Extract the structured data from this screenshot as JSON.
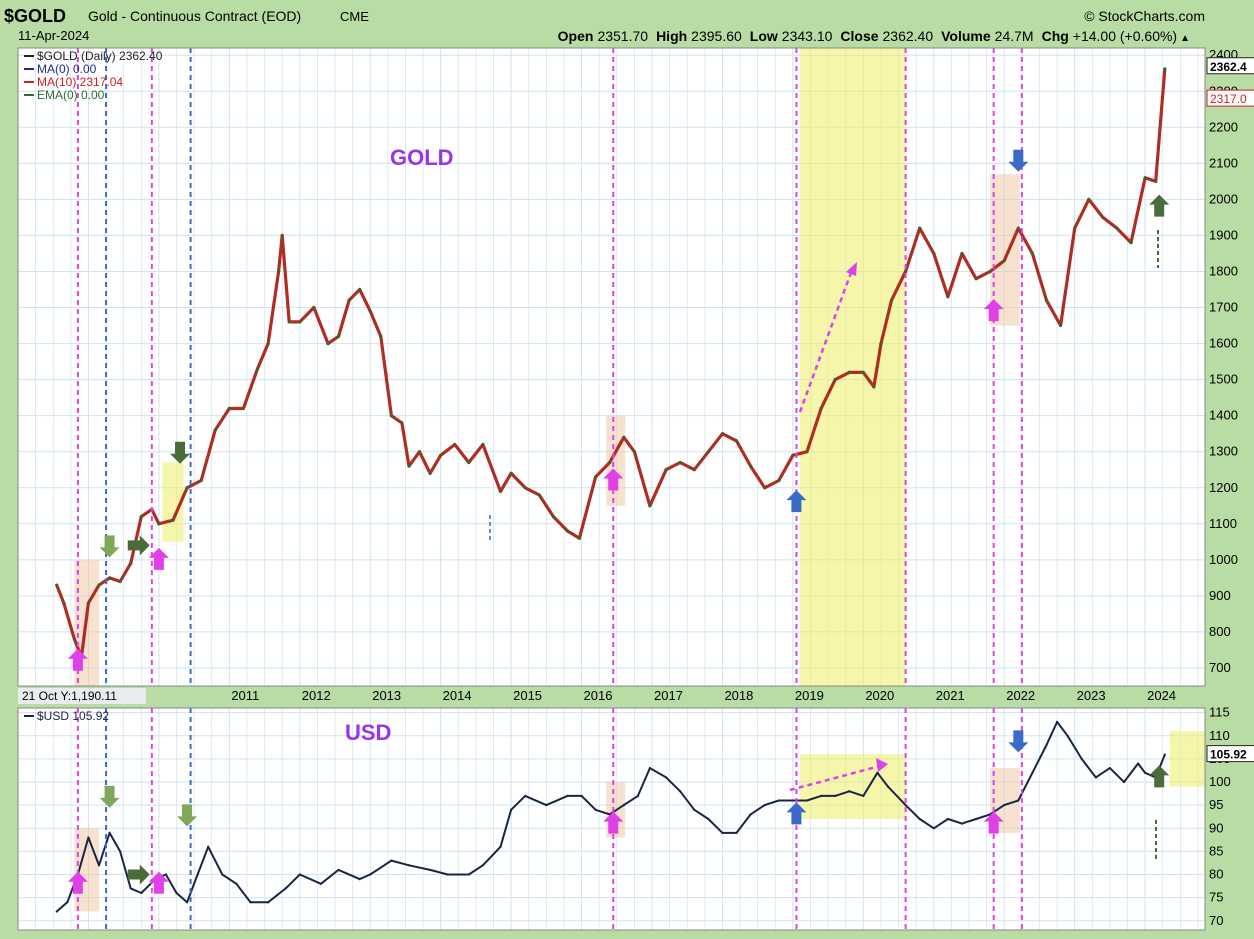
{
  "header": {
    "symbol": "$GOLD",
    "name": "Gold - Continuous Contract (EOD)",
    "exchange": "CME",
    "date": "11-Apr-2024",
    "source": "StockCharts.com",
    "ohlc": [
      {
        "label": "Open",
        "value": "2351.70"
      },
      {
        "label": "High",
        "value": "2395.60"
      },
      {
        "label": "Low",
        "value": "2343.10"
      },
      {
        "label": "Close",
        "value": "2362.40"
      },
      {
        "label": "Volume",
        "value": "24.7M"
      },
      {
        "label": "Chg",
        "value": "+14.00 (+0.60%)"
      }
    ],
    "chg_arrow": "▲"
  },
  "colors": {
    "background": "#b9dca5",
    "plot_bg": "#ffffff",
    "grid": "#cfe3f0",
    "price_up": "#2f6b2f",
    "price_down": "#cc1f1f",
    "usd_line": "#1a2444",
    "magenta": "#e040e8",
    "blue_dash": "#3a6bc9",
    "yellow_band": "#eeee66",
    "peach_band": "#f0c8a8",
    "label_purple": "#9933ee"
  },
  "chart_data": [
    {
      "type": "line",
      "title": "GOLD",
      "legend": [
        {
          "label": "$GOLD (Daily) 2362.40",
          "color": "#222222"
        },
        {
          "label": "MA(0) 0.00",
          "color": "#1d2c8a"
        },
        {
          "label": "MA(10) 2317.04",
          "color": "#cc1f1f"
        },
        {
          "label": "EMA(0) 0.00",
          "color": "#2f6b2f"
        }
      ],
      "legend_position": "top-left",
      "ylim": [
        650,
        2420
      ],
      "yticks": [
        700,
        800,
        900,
        1000,
        1100,
        1200,
        1300,
        1400,
        1500,
        1600,
        1700,
        1800,
        1900,
        2000,
        2100,
        2200,
        2300,
        2400
      ],
      "right_labels": [
        "2362.4",
        "2317.0"
      ],
      "hover_label": "21 Oct Y:1,190.11",
      "x": [
        2008.55,
        2008.65,
        2008.8,
        2008.9,
        2009.0,
        2009.15,
        2009.3,
        2009.45,
        2009.6,
        2009.75,
        2009.9,
        2010.0,
        2010.2,
        2010.4,
        2010.6,
        2010.8,
        2011.0,
        2011.2,
        2011.4,
        2011.55,
        2011.7,
        2011.75,
        2011.85,
        2012.0,
        2012.2,
        2012.4,
        2012.55,
        2012.7,
        2012.85,
        2013.0,
        2013.15,
        2013.3,
        2013.45,
        2013.55,
        2013.7,
        2013.85,
        2014.0,
        2014.2,
        2014.4,
        2014.6,
        2014.85,
        2015.0,
        2015.2,
        2015.4,
        2015.6,
        2015.8,
        2015.97,
        2016.2,
        2016.4,
        2016.6,
        2016.75,
        2016.97,
        2017.2,
        2017.4,
        2017.6,
        2017.8,
        2018.0,
        2018.2,
        2018.4,
        2018.6,
        2018.8,
        2019.0,
        2019.2,
        2019.4,
        2019.6,
        2019.8,
        2020.0,
        2020.15,
        2020.25,
        2020.4,
        2020.6,
        2020.8,
        2021.0,
        2021.2,
        2021.4,
        2021.6,
        2021.8,
        2022.0,
        2022.2,
        2022.4,
        2022.6,
        2022.8,
        2023.0,
        2023.2,
        2023.4,
        2023.6,
        2023.8,
        2024.0,
        2024.15,
        2024.28
      ],
      "y": [
        930,
        880,
        780,
        730,
        880,
        930,
        950,
        940,
        990,
        1120,
        1140,
        1100,
        1110,
        1200,
        1220,
        1360,
        1420,
        1420,
        1530,
        1600,
        1800,
        1900,
        1660,
        1660,
        1700,
        1600,
        1620,
        1720,
        1750,
        1690,
        1620,
        1400,
        1380,
        1260,
        1300,
        1240,
        1290,
        1320,
        1270,
        1320,
        1190,
        1240,
        1200,
        1180,
        1120,
        1080,
        1060,
        1230,
        1270,
        1340,
        1300,
        1150,
        1250,
        1270,
        1250,
        1300,
        1350,
        1330,
        1260,
        1200,
        1220,
        1290,
        1300,
        1420,
        1500,
        1520,
        1520,
        1480,
        1600,
        1720,
        1800,
        1920,
        1850,
        1730,
        1850,
        1780,
        1800,
        1830,
        1920,
        1850,
        1720,
        1650,
        1920,
        2000,
        1950,
        1920,
        1880,
        2060,
        2050,
        2362
      ]
    },
    {
      "type": "line",
      "title": "USD",
      "legend": [
        {
          "label": "$USD 105.92",
          "color": "#1a2444"
        }
      ],
      "legend_position": "top-left",
      "ylim": [
        68,
        116
      ],
      "yticks": [
        70,
        75,
        80,
        85,
        90,
        95,
        100,
        105,
        110,
        115
      ],
      "right_labels": [
        "105.92"
      ],
      "x": [
        2008.55,
        2008.7,
        2008.85,
        2009.0,
        2009.15,
        2009.3,
        2009.45,
        2009.6,
        2009.75,
        2009.95,
        2010.1,
        2010.25,
        2010.4,
        2010.55,
        2010.7,
        2010.9,
        2011.1,
        2011.3,
        2011.55,
        2011.8,
        2012.0,
        2012.3,
        2012.55,
        2012.85,
        2013.0,
        2013.3,
        2013.55,
        2013.85,
        2014.1,
        2014.4,
        2014.6,
        2014.85,
        2015.0,
        2015.2,
        2015.5,
        2015.8,
        2016.0,
        2016.2,
        2016.4,
        2016.6,
        2016.8,
        2016.97,
        2017.2,
        2017.4,
        2017.6,
        2017.8,
        2018.0,
        2018.2,
        2018.4,
        2018.6,
        2018.8,
        2019.0,
        2019.2,
        2019.4,
        2019.6,
        2019.8,
        2020.0,
        2020.2,
        2020.35,
        2020.6,
        2020.8,
        2021.0,
        2021.2,
        2021.4,
        2021.6,
        2021.8,
        2022.0,
        2022.2,
        2022.4,
        2022.6,
        2022.75,
        2022.9,
        2023.1,
        2023.3,
        2023.5,
        2023.7,
        2023.9,
        2024.0,
        2024.15,
        2024.28
      ],
      "y": [
        72,
        74,
        80,
        88,
        82,
        89,
        85,
        77,
        76,
        79,
        80,
        76,
        74,
        80,
        86,
        80,
        78,
        74,
        74,
        77,
        80,
        78,
        81,
        79,
        80,
        83,
        82,
        81,
        80,
        80,
        82,
        86,
        94,
        97,
        95,
        97,
        97,
        94,
        93,
        95,
        97,
        103,
        101,
        98,
        94,
        92,
        89,
        89,
        93,
        95,
        96,
        96,
        96,
        97,
        97,
        98,
        97,
        102,
        99,
        95,
        92,
        90,
        92,
        91,
        92,
        93,
        95,
        96,
        102,
        108,
        113,
        110,
        105,
        101,
        103,
        100,
        104,
        102,
        101,
        105.92
      ]
    }
  ],
  "x_axis": {
    "ticks": [
      2008,
      2009,
      2010,
      2011,
      2012,
      2013,
      2014,
      2015,
      2016,
      2017,
      2018,
      2019,
      2020,
      2021,
      2022,
      2023,
      2024
    ],
    "visible_labels": [
      "2011",
      "2012",
      "2013",
      "2014",
      "2015",
      "2016",
      "2017",
      "2018",
      "2019",
      "2020",
      "2021",
      "2022",
      "2023",
      "2024"
    ]
  }
}
